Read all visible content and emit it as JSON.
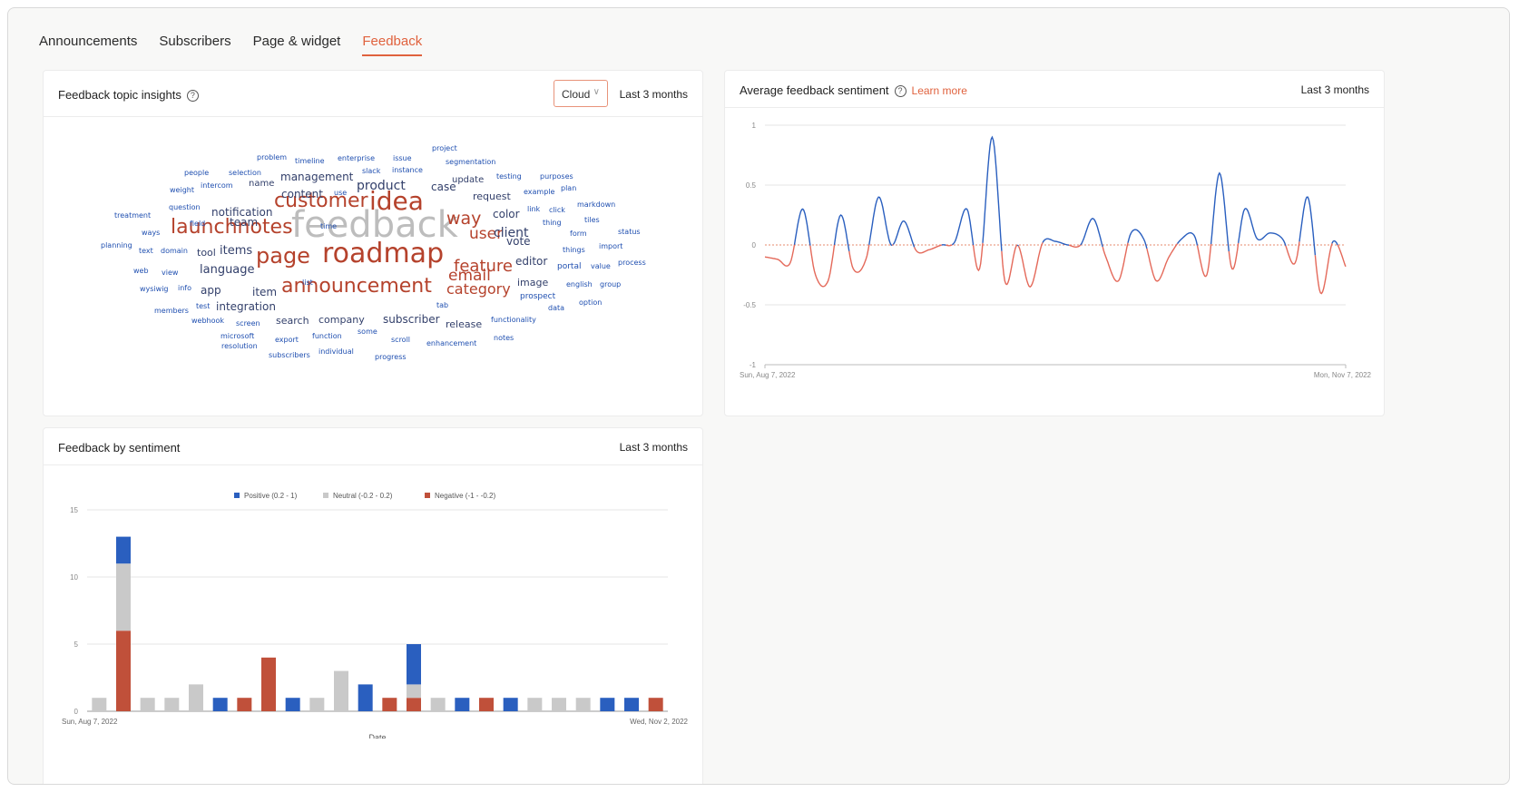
{
  "tabs": [
    {
      "label": "Announcements",
      "active": false
    },
    {
      "label": "Subscribers",
      "active": false
    },
    {
      "label": "Page & widget",
      "active": false
    },
    {
      "label": "Feedback",
      "active": true
    }
  ],
  "topic_card": {
    "title": "Feedback topic insights",
    "view_select": "Cloud",
    "period": "Last 3 months",
    "words": [
      {
        "t": "feedback",
        "s": 40,
        "c": "grey"
      },
      {
        "t": "roadmap",
        "s": 30,
        "c": "red"
      },
      {
        "t": "idea",
        "s": 28,
        "c": "red"
      },
      {
        "t": "customer",
        "s": 22,
        "c": "red"
      },
      {
        "t": "launchnotes",
        "s": 22,
        "c": "red"
      },
      {
        "t": "page",
        "s": 24,
        "c": "red"
      },
      {
        "t": "announcement",
        "s": 22,
        "c": "red"
      },
      {
        "t": "email",
        "s": 17,
        "c": "red"
      },
      {
        "t": "way",
        "s": 19,
        "c": "red"
      },
      {
        "t": "user",
        "s": 17,
        "c": "red"
      },
      {
        "t": "feature",
        "s": 18,
        "c": "red"
      },
      {
        "t": "category",
        "s": 16,
        "c": "red"
      },
      {
        "t": "client",
        "s": 14,
        "c": "navy"
      },
      {
        "t": "product",
        "s": 14,
        "c": "navy"
      },
      {
        "t": "management",
        "s": 12,
        "c": "navy"
      },
      {
        "t": "content",
        "s": 12,
        "c": "navy"
      },
      {
        "t": "notification",
        "s": 12,
        "c": "navy"
      },
      {
        "t": "team",
        "s": 12,
        "c": "navy"
      },
      {
        "t": "case",
        "s": 12,
        "c": "navy"
      },
      {
        "t": "request",
        "s": 11,
        "c": "navy"
      },
      {
        "t": "color",
        "s": 12,
        "c": "navy"
      },
      {
        "t": "vote",
        "s": 12,
        "c": "navy"
      },
      {
        "t": "editor",
        "s": 12,
        "c": "navy"
      },
      {
        "t": "image",
        "s": 11,
        "c": "navy"
      },
      {
        "t": "items",
        "s": 13,
        "c": "navy"
      },
      {
        "t": "tool",
        "s": 11,
        "c": "navy"
      },
      {
        "t": "language",
        "s": 13,
        "c": "navy"
      },
      {
        "t": "app",
        "s": 12,
        "c": "navy"
      },
      {
        "t": "item",
        "s": 12,
        "c": "navy"
      },
      {
        "t": "integration",
        "s": 12,
        "c": "navy"
      },
      {
        "t": "search",
        "s": 11,
        "c": "navy"
      },
      {
        "t": "company",
        "s": 11,
        "c": "navy"
      },
      {
        "t": "subscriber",
        "s": 12,
        "c": "navy"
      },
      {
        "t": "release",
        "s": 11,
        "c": "navy"
      },
      {
        "t": "update",
        "s": 10,
        "c": "navy"
      },
      {
        "t": "name",
        "s": 10,
        "c": "navy"
      },
      {
        "t": "problem",
        "s": 8,
        "c": "blue"
      },
      {
        "t": "timeline",
        "s": 8,
        "c": "blue"
      },
      {
        "t": "enterprise",
        "s": 8,
        "c": "blue"
      },
      {
        "t": "issue",
        "s": 8,
        "c": "blue"
      },
      {
        "t": "project",
        "s": 8,
        "c": "blue"
      },
      {
        "t": "segmentation",
        "s": 8,
        "c": "blue"
      },
      {
        "t": "people",
        "s": 8,
        "c": "blue"
      },
      {
        "t": "selection",
        "s": 8,
        "c": "blue"
      },
      {
        "t": "slack",
        "s": 8,
        "c": "blue"
      },
      {
        "t": "instance",
        "s": 8,
        "c": "blue"
      },
      {
        "t": "testing",
        "s": 8,
        "c": "blue"
      },
      {
        "t": "purposes",
        "s": 8,
        "c": "blue"
      },
      {
        "t": "weight",
        "s": 8,
        "c": "blue"
      },
      {
        "t": "intercom",
        "s": 8,
        "c": "blue"
      },
      {
        "t": "use",
        "s": 8,
        "c": "blue"
      },
      {
        "t": "example",
        "s": 8,
        "c": "blue"
      },
      {
        "t": "plan",
        "s": 8,
        "c": "blue"
      },
      {
        "t": "question",
        "s": 8,
        "c": "blue"
      },
      {
        "t": "link",
        "s": 8,
        "c": "blue"
      },
      {
        "t": "click",
        "s": 8,
        "c": "blue"
      },
      {
        "t": "markdown",
        "s": 8,
        "c": "blue"
      },
      {
        "t": "treatment",
        "s": 8,
        "c": "blue"
      },
      {
        "t": "field",
        "s": 8,
        "c": "blue"
      },
      {
        "t": "time",
        "s": 8,
        "c": "blue"
      },
      {
        "t": "thing",
        "s": 8,
        "c": "blue"
      },
      {
        "t": "tiles",
        "s": 8,
        "c": "blue"
      },
      {
        "t": "ways",
        "s": 8,
        "c": "blue"
      },
      {
        "t": "form",
        "s": 8,
        "c": "blue"
      },
      {
        "t": "status",
        "s": 8,
        "c": "blue"
      },
      {
        "t": "planning",
        "s": 8,
        "c": "blue"
      },
      {
        "t": "text",
        "s": 8,
        "c": "blue"
      },
      {
        "t": "domain",
        "s": 8,
        "c": "blue"
      },
      {
        "t": "things",
        "s": 8,
        "c": "blue"
      },
      {
        "t": "import",
        "s": 8,
        "c": "blue"
      },
      {
        "t": "web",
        "s": 8,
        "c": "blue"
      },
      {
        "t": "view",
        "s": 8,
        "c": "blue"
      },
      {
        "t": "portal",
        "s": 9,
        "c": "blue"
      },
      {
        "t": "value",
        "s": 8,
        "c": "blue"
      },
      {
        "t": "process",
        "s": 8,
        "c": "blue"
      },
      {
        "t": "wysiwig",
        "s": 8,
        "c": "blue"
      },
      {
        "t": "info",
        "s": 8,
        "c": "blue"
      },
      {
        "t": "list",
        "s": 8,
        "c": "blue"
      },
      {
        "t": "english",
        "s": 8,
        "c": "blue"
      },
      {
        "t": "group",
        "s": 8,
        "c": "blue"
      },
      {
        "t": "members",
        "s": 8,
        "c": "blue"
      },
      {
        "t": "test",
        "s": 8,
        "c": "blue"
      },
      {
        "t": "tab",
        "s": 8,
        "c": "blue"
      },
      {
        "t": "prospect",
        "s": 9,
        "c": "blue"
      },
      {
        "t": "data",
        "s": 8,
        "c": "blue"
      },
      {
        "t": "option",
        "s": 8,
        "c": "blue"
      },
      {
        "t": "webhook",
        "s": 8,
        "c": "blue"
      },
      {
        "t": "screen",
        "s": 8,
        "c": "blue"
      },
      {
        "t": "functionality",
        "s": 8,
        "c": "blue"
      },
      {
        "t": "microsoft",
        "s": 8,
        "c": "blue"
      },
      {
        "t": "export",
        "s": 8,
        "c": "blue"
      },
      {
        "t": "function",
        "s": 8,
        "c": "blue"
      },
      {
        "t": "some",
        "s": 8,
        "c": "blue"
      },
      {
        "t": "notes",
        "s": 8,
        "c": "blue"
      },
      {
        "t": "resolution",
        "s": 8,
        "c": "blue"
      },
      {
        "t": "scroll",
        "s": 8,
        "c": "blue"
      },
      {
        "t": "enhancement",
        "s": 8,
        "c": "blue"
      },
      {
        "t": "subscribers",
        "s": 8,
        "c": "blue"
      },
      {
        "t": "individual",
        "s": 8,
        "c": "blue"
      },
      {
        "t": "progress",
        "s": 8,
        "c": "blue"
      }
    ]
  },
  "sentiment_card": {
    "title": "Average feedback sentiment",
    "learn_more": "Learn more",
    "period": "Last 3 months"
  },
  "bars_card": {
    "title": "Feedback by sentiment",
    "period": "Last 3 months"
  },
  "colors": {
    "accent": "#e0623e",
    "positive": "#2a5fbf",
    "neutral": "#c9c9c9",
    "negative": "#c0503a"
  },
  "chart_data": [
    {
      "type": "line",
      "title": "Average feedback sentiment",
      "ylim": [
        -1,
        1
      ],
      "yticks": [
        "1",
        "0.5",
        "0",
        "-0.5",
        "-1"
      ],
      "x_start_label": "Sun, Aug 7, 2022",
      "x_end_label": "Mon, Nov 7, 2022",
      "series": [
        {
          "values": [
            -0.1,
            -0.12,
            -0.15,
            0.3,
            -0.25,
            -0.3,
            0.25,
            -0.2,
            -0.12,
            0.4,
            0.0,
            0.2,
            -0.05,
            -0.04,
            0.0,
            0.02,
            0.3,
            -0.2,
            0.9,
            -0.3,
            0.0,
            -0.35,
            0.02,
            0.03,
            0.0,
            0.0,
            0.22,
            -0.1,
            -0.3,
            0.1,
            0.05,
            -0.3,
            -0.1,
            0.05,
            0.08,
            -0.25,
            0.6,
            -0.2,
            0.3,
            0.05,
            0.1,
            0.05,
            -0.15,
            0.4,
            -0.4,
            0.03,
            -0.18
          ]
        }
      ],
      "zero_line": "dashed"
    },
    {
      "type": "bar",
      "stacked": true,
      "title": "Feedback by sentiment",
      "xlabel": "Date",
      "ylim": [
        0,
        15
      ],
      "yticks": [
        "15",
        "10",
        "5",
        "0"
      ],
      "x_start_label": "Sun, Aug 7, 2022",
      "x_end_label": "Wed, Nov 2, 2022",
      "legend": "top-center",
      "series": [
        {
          "name": "Positive (0.2 - 1)",
          "values": [
            0,
            2,
            0,
            0,
            0,
            1,
            0,
            0,
            1,
            0,
            0,
            2,
            0,
            3,
            0,
            1,
            0,
            1,
            0,
            0,
            0,
            1,
            1,
            0
          ]
        },
        {
          "name": "Neutral (-0.2 - 0.2)",
          "values": [
            1,
            5,
            1,
            1,
            2,
            0,
            0,
            0,
            0,
            1,
            3,
            0,
            0,
            1,
            1,
            0,
            0,
            0,
            1,
            1,
            1,
            0,
            0,
            0
          ]
        },
        {
          "name": "Negative (-1 - -0.2)",
          "values": [
            0,
            6,
            0,
            0,
            0,
            0,
            1,
            4,
            0,
            0,
            0,
            0,
            1,
            1,
            0,
            0,
            1,
            0,
            0,
            0,
            0,
            0,
            0,
            1
          ]
        }
      ]
    }
  ]
}
